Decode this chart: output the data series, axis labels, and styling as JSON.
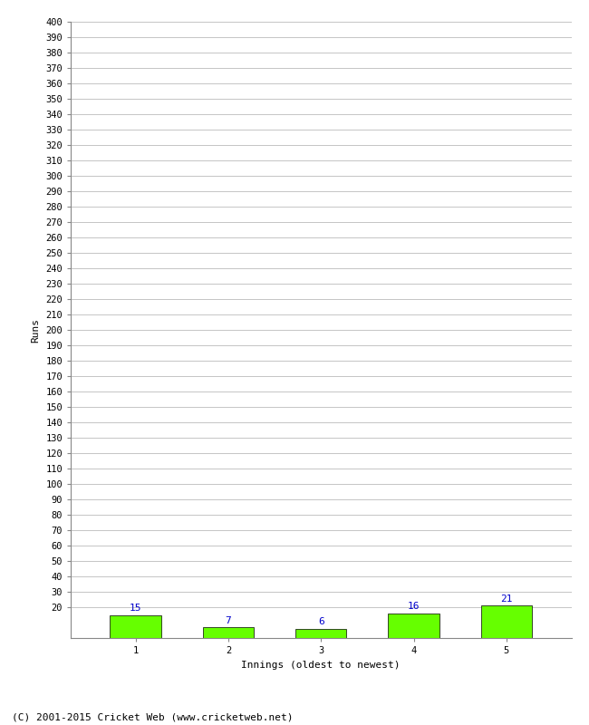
{
  "categories": [
    1,
    2,
    3,
    4,
    5
  ],
  "values": [
    15,
    7,
    6,
    16,
    21
  ],
  "bar_color": "#66ff00",
  "bar_edge_color": "#000000",
  "value_label_color": "#0000cc",
  "value_label_fontsize": 8,
  "xlabel": "Innings (oldest to newest)",
  "ylabel": "Runs",
  "ylim": [
    0,
    400
  ],
  "grid_color": "#bbbbbb",
  "grid_linewidth": 0.6,
  "background_color": "#ffffff",
  "footer_text": "(C) 2001-2015 Cricket Web (www.cricketweb.net)",
  "footer_fontsize": 8,
  "footer_color": "#000000",
  "xlabel_fontsize": 8,
  "ylabel_fontsize": 8,
  "tick_fontsize": 7.5,
  "bar_width": 0.55,
  "yticks": [
    20,
    30,
    40,
    50,
    60,
    70,
    80,
    90,
    100,
    110,
    120,
    130,
    140,
    150,
    160,
    170,
    180,
    190,
    200,
    210,
    220,
    230,
    240,
    250,
    260,
    270,
    280,
    290,
    300,
    310,
    320,
    330,
    340,
    350,
    360,
    370,
    380,
    390,
    400
  ]
}
